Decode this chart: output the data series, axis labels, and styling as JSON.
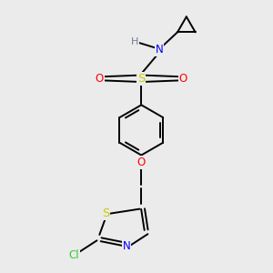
{
  "background_color": "#ebebeb",
  "figure_size": [
    3.0,
    3.0
  ],
  "dpi": 100,
  "atom_colors": {
    "C": "#000000",
    "H": "#708090",
    "N": "#0000ff",
    "O": "#ff0000",
    "S_sul": "#cccc00",
    "S_thz": "#cccc00",
    "Cl": "#33cc33"
  },
  "bond_color": "#000000",
  "bond_width": 1.4,
  "font_size": 8.5
}
